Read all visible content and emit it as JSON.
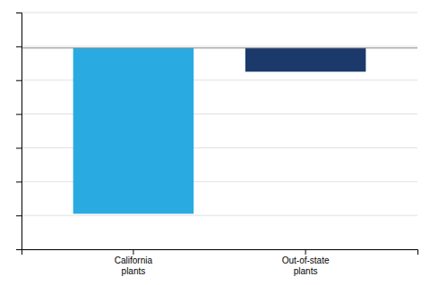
{
  "chart_data": {
    "type": "bar",
    "categories": [
      "California\nplants",
      "Out-of-state\nplants"
    ],
    "values": [
      -0.7,
      -0.1
    ],
    "colors": [
      "#29ABE2",
      "#1B3A6B"
    ],
    "ylim": [
      -0.85,
      0.15
    ],
    "yticks": [
      -0.85,
      -0.707142857142857,
      -0.564285714285714,
      -0.421428571428571,
      -0.278571428571429,
      -0.135714285714286,
      0.007142857142857,
      0.15
    ],
    "grid": true,
    "tick_labels": "x"
  }
}
